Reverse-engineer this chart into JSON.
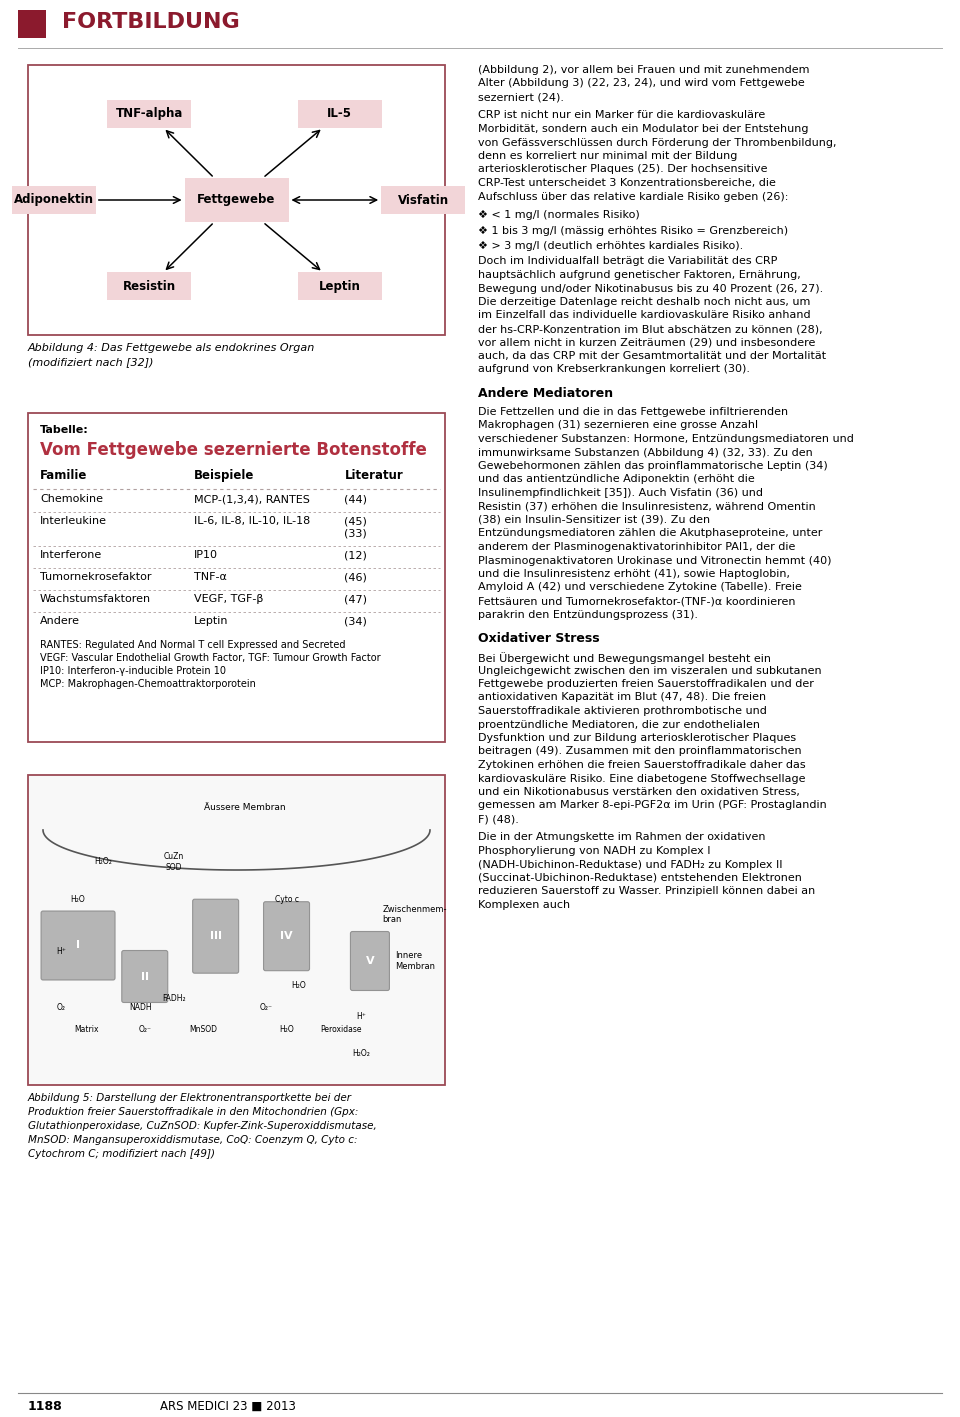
{
  "page_bg": "#ffffff",
  "header_red": "#8b1a2d",
  "header_text": "FORTBILDUNG",
  "box_fill": "#f2d5d8",
  "diagram_border": "#9b4a55",
  "table_border": "#9b4a55",
  "title_red": "#b03040",
  "fig4_caption": "Abbildung 4: Das Fettgewebe als endokrines Organ\n(modifiziert nach [32])",
  "table_title_small": "Tabelle:",
  "table_title_large": "Vom Fettgewebe sezernierte Botenstoffe",
  "table_headers": [
    "Familie",
    "Beispiele",
    "Literatur"
  ],
  "table_rows": [
    [
      "Chemokine",
      "MCP-(1,3,4), RANTES",
      "(44)"
    ],
    [
      "Interleukine",
      "IL-6, IL-8, IL-10, IL-18",
      "(45)\n(33)"
    ],
    [
      "Interferone",
      "IP10",
      "(12)"
    ],
    [
      "Tumornekrosefaktor",
      "TNF-α",
      "(46)"
    ],
    [
      "Wachstumsfaktoren",
      "VEGF, TGF-β",
      "(47)"
    ],
    [
      "Andere",
      "Leptin",
      "(34)"
    ]
  ],
  "footnotes": [
    "RANTES: Regulated And Normal T cell Expressed and Secreted",
    "VEGF: Vascular Endothelial Growth Factor, TGF: Tumour Growth Factor",
    "IP10: Interferon-γ-inducible Protein 10",
    "MCP: Makrophagen-Chemoattraktorporotein"
  ],
  "fig5_caption": "Abbildung 5: Darstellung der Elektronentransportkette bei der\nProduktion freier Sauerstoffradikale in den Mitochondrien (Gpx:\nGlutathionperoxidase, CuZnSOD: Kupfer-Zink-Superoxiddismutase,\nMnSOD: Mangansuperoxiddismutase, CoQ: Coenzym Q, Cyto c:\nCytochrom C; modifiziert nach [49])",
  "right_paras": [
    {
      "type": "text",
      "italic_parts": [
        "(Abbildung 2)",
        "(Abbildung 3)"
      ],
      "text": "(Abbildung 2), vor allem bei Frauen und mit zunehmendem Alter (Abbildung 3) (22, 23, 24), und wird vom Fettgewebe sezerniert (24)."
    },
    {
      "type": "text",
      "text": "CRP ist nicht nur ein Marker für die kardiovaskuläre Morbidität, sondern auch ein Modulator bei der Entstehung von Gefässverschlüssen durch Förderung der Thrombenbildung, denn es korreliert nur minimal mit der Bildung arteriosklerotischer Plaques (25). Der hochsensitive CRP-Test unterscheidet 3 Konzentrationsbereiche, die Aufschluss über das relative kardiale Risiko geben (26):"
    },
    {
      "type": "bullet",
      "text": "< 1 mg/l (normales Risiko)"
    },
    {
      "type": "bullet",
      "text": "1 bis 3 mg/l (mässig erhöhtes Risiko = Grenzbereich)"
    },
    {
      "type": "bullet",
      "text": "> 3 mg/l (deutlich erhöhtes kardiales Risiko)."
    },
    {
      "type": "text",
      "text": "Doch im Individualfall beträgt die Variabilität des CRP hauptsächlich aufgrund genetischer Faktoren, Ernährung, Bewegung und/oder Nikotinabusus bis zu 40 Prozent (26, 27). Die derzeitige Datenlage reicht deshalb noch nicht aus, um im Einzelfall das individuelle kardiovaskuläre Risiko anhand der hs-CRP-Konzentration im Blut abschätzen zu können (28), vor allem nicht in kurzen Zeiträumen (29) und insbesondere auch, da das CRP mit der Gesamtmortalität und der Mortalität aufgrund von Krebserkrankungen korreliert (30)."
    },
    {
      "type": "heading",
      "text": "Andere Mediatoren"
    },
    {
      "type": "text",
      "text": "Die Fettzellen und die in das Fettgewebe infiltrierenden Makrophagen (31) sezernieren eine grosse Anzahl verschiedener Substanzen: Hormone, Entzündungsmediatoren und immunwirksame Substanzen (Abbildung 4) (32, 33). Zu den Gewebehormonen zählen das proinflammatorische Leptin (34) und das antientzündliche Adiponektin (erhöht die Insulinempfindlichkeit [35]). Auch Visfatin (36) und Resistin (37) erhöhen die Insulinresistenz, während Omentin (38) ein Insulin-Sensitizer ist (39). Zu den Entzündungsmediatoren zählen die Akutphaseproteine, unter anderem der Plasminogenaktivatorinhibitor PAI1, der die Plasminogenaktivatoren Urokinase und Vitronectin hemmt (40) und die Insulinresistenz erhöht (41), sowie Haptoglobin, Amyloid A (42) und verschiedene Zytokine (Tabelle). Freie Fettsäuren und Tumornekrosefaktor-(TNF-)α koordinieren parakrin den Entzündungsprozess (31)."
    },
    {
      "type": "heading",
      "text": "Oxidativer Stress"
    },
    {
      "type": "text",
      "text": "Bei Übergewicht und Bewegungsmangel besteht ein Ungleichgewicht zwischen den im viszeralen und subkutanen Fettgewebe produzierten freien Sauerstoffradikalen und der antioxidativen Kapazität im Blut (47, 48). Die freien Sauerstoffradikale aktivieren prothrombotische und proentzündliche Mediatoren, die zur endothelialen Dysfunktion und zur Bildung arteriosklerotischer Plaques beitragen (49). Zusammen mit den proinflammatorischen Zytokinen erhöhen die freien Sauerstoffradikale daher das kardiovaskuläre Risiko. Eine diabetogene Stoffwechsellage und ein Nikotionabusus verstärken den oxidativen Stress, gemessen am Marker 8-epi-PGF2α im Urin (PGF: Prostaglandin F) (48)."
    },
    {
      "type": "text",
      "text": "Die in der Atmungskette im Rahmen der oxidativen Phosphorylierung von NADH zu Komplex I (NADH-Ubichinon-Reduktase) und FADH₂ zu Komplex II (Succinat-Ubichinon-Reduktase) entstehenden Elektronen reduzieren Sauerstoff zu Wasser. Prinzipiell können dabei an Komplexen auch"
    }
  ],
  "footer_text": "1188",
  "footer_right": "ARS MEDICI 23 ■ 2013"
}
